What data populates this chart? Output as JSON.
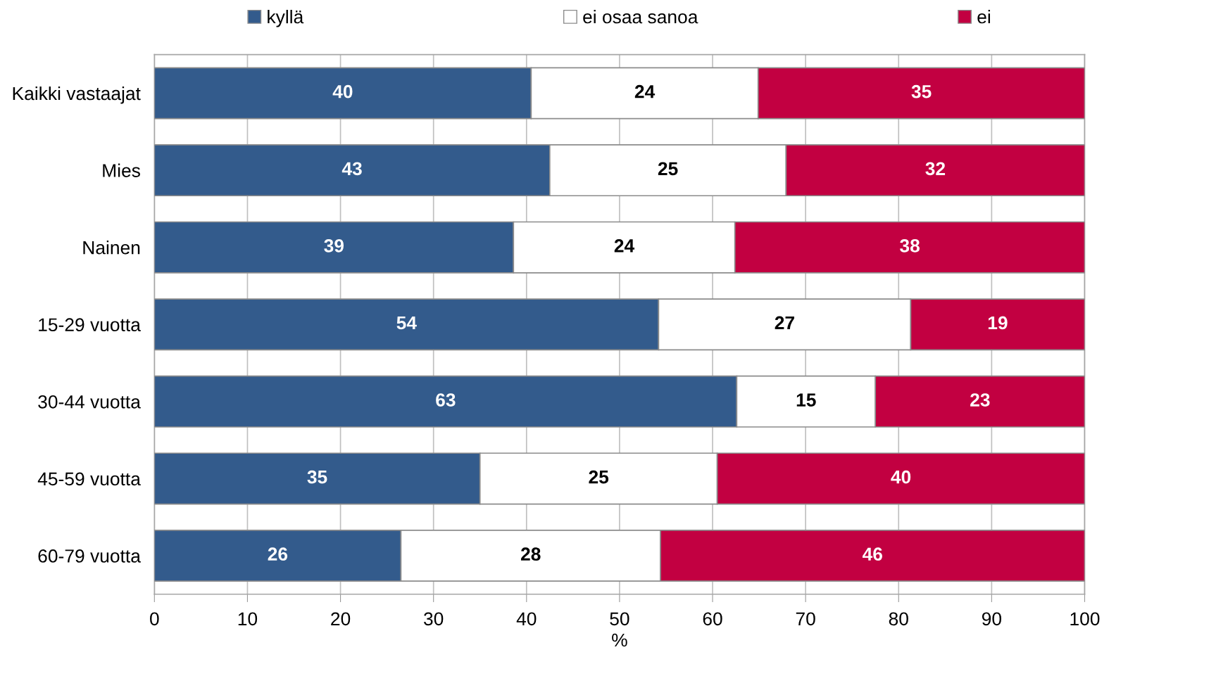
{
  "chart_data": {
    "type": "bar",
    "orientation": "horizontal",
    "stacked": true,
    "xlabel": "%",
    "categories": [
      "Kaikki vastaajat",
      "Mies",
      "Nainen",
      "15-29 vuotta",
      "30-44 vuotta",
      "45-59 vuotta",
      "60-79 vuotta"
    ],
    "series": [
      {
        "name": "kyllä",
        "color": "#335b8c",
        "values": [
          40.5,
          42.5,
          38.6,
          54.2,
          62.6,
          35.0,
          26.5
        ],
        "value_labels": [
          "40",
          "43",
          "39",
          "54",
          "63",
          "35",
          "26"
        ]
      },
      {
        "name": "ei osaa sanoa",
        "color": "#ffffff",
        "values": [
          24.4,
          25.4,
          23.8,
          27.1,
          14.9,
          25.5,
          27.9
        ],
        "value_labels": [
          "24",
          "25",
          "24",
          "27",
          "15",
          "25",
          "28"
        ]
      },
      {
        "name": "ei",
        "color": "#c20041",
        "values": [
          35.1,
          32.1,
          37.6,
          18.7,
          22.5,
          39.5,
          45.6
        ],
        "value_labels": [
          "35",
          "32",
          "38",
          "19",
          "23",
          "40",
          "46"
        ]
      }
    ],
    "xlim": [
      0,
      100
    ],
    "xticks": [
      0,
      10,
      20,
      30,
      40,
      50,
      60,
      70,
      80,
      90,
      100
    ],
    "grid": "x",
    "legend": "top"
  }
}
